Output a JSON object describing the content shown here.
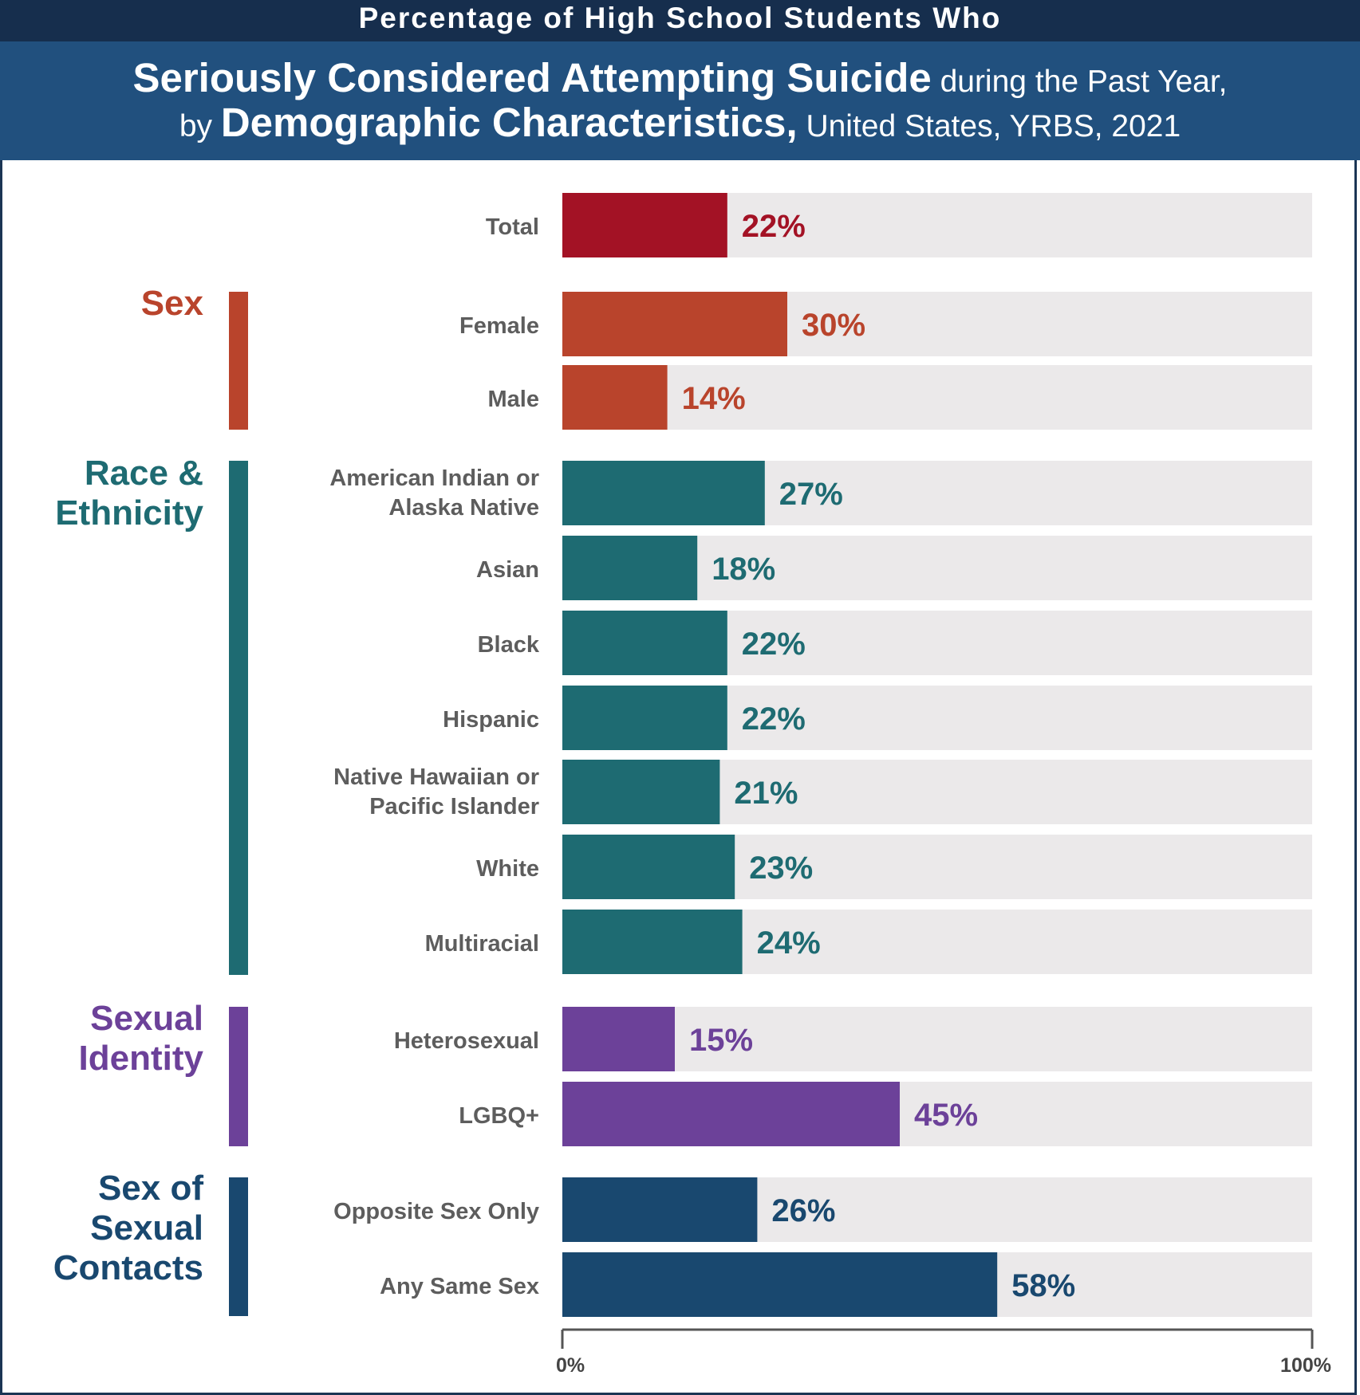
{
  "header": {
    "line0": "Percentage of High School Students Who",
    "line1_big": "Seriously Considered Attempting Suicide",
    "line1_small": " during the Past Year,",
    "line2_small_a": "by ",
    "line2_big": "Demographic Characteristics,",
    "line2_small_b": " United States, YRBS, 2021"
  },
  "chart_data": {
    "type": "bar",
    "orientation": "horizontal",
    "xlim": [
      0,
      100
    ],
    "ticks": [
      "0%",
      "100%"
    ],
    "groups": [
      {
        "label": "",
        "color": "#a31225",
        "items": [
          {
            "label": "Total",
            "value": 22,
            "display": "22%"
          }
        ]
      },
      {
        "label": "Sex",
        "color": "#b9442c",
        "items": [
          {
            "label": "Female",
            "value": 30,
            "display": "30%"
          },
          {
            "label": "Male",
            "value": 14,
            "display": "14%"
          }
        ]
      },
      {
        "label": "Race & Ethnicity",
        "color": "#1e6b72",
        "items": [
          {
            "label": "American Indian or Alaska Native",
            "value": 27,
            "display": "27%"
          },
          {
            "label": "Asian",
            "value": 18,
            "display": "18%"
          },
          {
            "label": "Black",
            "value": 22,
            "display": "22%"
          },
          {
            "label": "Hispanic",
            "value": 22,
            "display": "22%"
          },
          {
            "label": "Native Hawaiian or Pacific Islander",
            "value": 21,
            "display": "21%"
          },
          {
            "label": "White",
            "value": 23,
            "display": "23%"
          },
          {
            "label": "Multiracial",
            "value": 24,
            "display": "24%"
          }
        ]
      },
      {
        "label": "Sexual Identity",
        "color": "#6c4199",
        "items": [
          {
            "label": "Heterosexual",
            "value": 15,
            "display": "15%"
          },
          {
            "label": "LGBQ+",
            "value": 45,
            "display": "45%"
          }
        ]
      },
      {
        "label": "Sex of Sexual Contacts",
        "color": "#19486f",
        "items": [
          {
            "label": "Opposite Sex Only",
            "value": 26,
            "display": "26%"
          },
          {
            "label": "Any Same Sex",
            "value": 58,
            "display": "58%"
          }
        ]
      }
    ]
  }
}
